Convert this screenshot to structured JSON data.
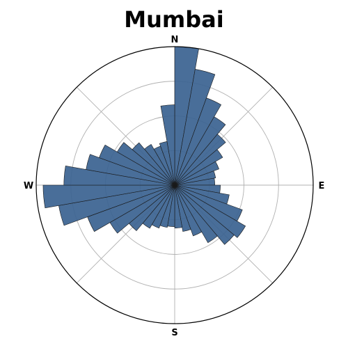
{
  "chart_data": {
    "type": "polar-bar",
    "title": "Mumbai",
    "direction_labels": [
      "N",
      "E",
      "S",
      "W"
    ],
    "bin_count": 36,
    "values": [
      10,
      8.5,
      6.7,
      5.7,
      4.8,
      4.0,
      3.4,
      3.0,
      2.9,
      3.3,
      4.0,
      5.2,
      5.9,
      5.6,
      4.8,
      3.9,
      3.4,
      3.1,
      3.0,
      3.1,
      3.3,
      3.6,
      4.3,
      5.4,
      6.7,
      8.5,
      9.5,
      8.0,
      6.5,
      5.8,
      4.8,
      4.0,
      3.4,
      3.0,
      3.2,
      5.8
    ],
    "rlim": [
      0,
      10
    ],
    "radial_grid": [
      2.5,
      5.0,
      7.5
    ],
    "angular_grid_step_deg": 45,
    "grid": true,
    "bar_color": "#3a6290",
    "bar_edge_color": "#1a1a1a",
    "bar_opacity": 0.92
  }
}
